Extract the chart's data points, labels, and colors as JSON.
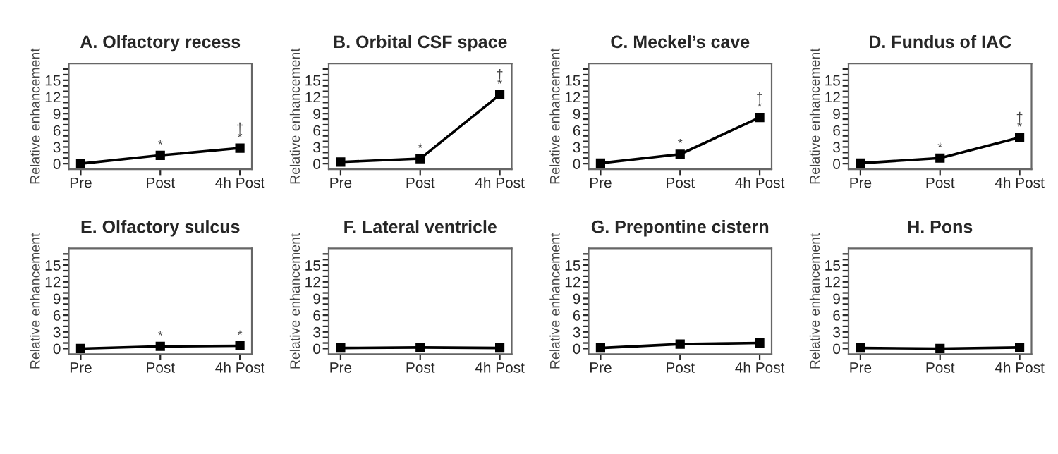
{
  "chart_data": [
    {
      "type": "line",
      "title": "A. Olfactory recess",
      "ylabel": "Relative enhancement",
      "categories": [
        "Pre",
        "Post",
        "4h Post"
      ],
      "series": [
        {
          "color": "#000000",
          "values": [
            0,
            1.5,
            2.8
          ]
        }
      ],
      "ylim": [
        -1,
        18
      ],
      "yticks": [
        0,
        {
          "value": 1,
          "label": null
        },
        {
          "value": 2,
          "label": null
        },
        3,
        {
          "value": 4,
          "label": null
        },
        {
          "value": 5,
          "label": null
        },
        6,
        {
          "value": 7,
          "label": null
        },
        {
          "value": 8,
          "label": null
        },
        9,
        {
          "value": 10,
          "label": null
        },
        {
          "value": 11,
          "label": null
        },
        12,
        {
          "value": 13,
          "label": null
        },
        {
          "value": 14,
          "label": null
        },
        15,
        {
          "value": 16,
          "label": null
        },
        {
          "value": 17,
          "label": null
        }
      ],
      "marker": "square",
      "line_style": "solid",
      "grid": false,
      "legend": false,
      "annotations": [
        {
          "text": "*",
          "x": "Post",
          "y": 1.5
        },
        {
          "text": "*",
          "x": "4h Post",
          "y": 2.8
        },
        {
          "text": "†",
          "x": "4h Post",
          "y": 2.8
        }
      ]
    },
    {
      "type": "line",
      "title": "B. Orbital CSF space",
      "ylabel": "Relative enhancement",
      "categories": [
        "Pre",
        "Post",
        "4h Post"
      ],
      "series": [
        {
          "color": "#000000",
          "values": [
            0.3,
            0.9,
            12.4
          ]
        }
      ],
      "ylim": [
        -1,
        18
      ],
      "yticks": [
        0,
        {
          "value": 1,
          "label": null
        },
        {
          "value": 2,
          "label": null
        },
        3,
        {
          "value": 4,
          "label": null
        },
        {
          "value": 5,
          "label": null
        },
        6,
        {
          "value": 7,
          "label": null
        },
        {
          "value": 8,
          "label": null
        },
        9,
        {
          "value": 10,
          "label": null
        },
        {
          "value": 11,
          "label": null
        },
        12,
        {
          "value": 13,
          "label": null
        },
        {
          "value": 14,
          "label": null
        },
        15,
        {
          "value": 16,
          "label": null
        },
        {
          "value": 17,
          "label": null
        }
      ],
      "marker": "square",
      "line_style": "solid",
      "grid": false,
      "legend": false,
      "annotations": [
        {
          "text": "*",
          "x": "Post",
          "y": 0.9
        },
        {
          "text": "*",
          "x": "4h Post",
          "y": 12.4
        },
        {
          "text": "†",
          "x": "4h Post",
          "y": 12.4
        }
      ]
    },
    {
      "type": "line",
      "title": "C. Meckel’s cave",
      "ylabel": "Relative enhancement",
      "categories": [
        "Pre",
        "Post",
        "4h Post"
      ],
      "series": [
        {
          "color": "#000000",
          "values": [
            0.1,
            1.7,
            8.3
          ]
        }
      ],
      "ylim": [
        -1,
        18
      ],
      "yticks": [
        0,
        {
          "value": 1,
          "label": null
        },
        {
          "value": 2,
          "label": null
        },
        3,
        {
          "value": 4,
          "label": null
        },
        {
          "value": 5,
          "label": null
        },
        6,
        {
          "value": 7,
          "label": null
        },
        {
          "value": 8,
          "label": null
        },
        9,
        {
          "value": 10,
          "label": null
        },
        {
          "value": 11,
          "label": null
        },
        12,
        {
          "value": 13,
          "label": null
        },
        {
          "value": 14,
          "label": null
        },
        15,
        {
          "value": 16,
          "label": null
        },
        {
          "value": 17,
          "label": null
        }
      ],
      "marker": "square",
      "line_style": "solid",
      "grid": false,
      "legend": false,
      "annotations": [
        {
          "text": "*",
          "x": "Post",
          "y": 1.7
        },
        {
          "text": "*",
          "x": "4h Post",
          "y": 8.3
        },
        {
          "text": "†",
          "x": "4h Post",
          "y": 8.3
        }
      ]
    },
    {
      "type": "line",
      "title": "D. Fundus of IAC",
      "ylabel": "Relative enhancement",
      "categories": [
        "Pre",
        "Post",
        "4h Post"
      ],
      "series": [
        {
          "color": "#000000",
          "values": [
            0.1,
            1.0,
            4.7
          ]
        }
      ],
      "ylim": [
        -1,
        18
      ],
      "yticks": [
        0,
        {
          "value": 1,
          "label": null
        },
        {
          "value": 2,
          "label": null
        },
        3,
        {
          "value": 4,
          "label": null
        },
        {
          "value": 5,
          "label": null
        },
        6,
        {
          "value": 7,
          "label": null
        },
        {
          "value": 8,
          "label": null
        },
        9,
        {
          "value": 10,
          "label": null
        },
        {
          "value": 11,
          "label": null
        },
        12,
        {
          "value": 13,
          "label": null
        },
        {
          "value": 14,
          "label": null
        },
        15,
        {
          "value": 16,
          "label": null
        },
        {
          "value": 17,
          "label": null
        }
      ],
      "marker": "square",
      "line_style": "solid",
      "grid": false,
      "legend": false,
      "annotations": [
        {
          "text": "*",
          "x": "Post",
          "y": 1.0
        },
        {
          "text": "*",
          "x": "4h Post",
          "y": 4.7
        },
        {
          "text": "†",
          "x": "4h Post",
          "y": 4.7
        }
      ]
    },
    {
      "type": "line",
      "title": "E. Olfactory sulcus",
      "ylabel": "Relative enhancement",
      "categories": [
        "Pre",
        "Post",
        "4h Post"
      ],
      "series": [
        {
          "color": "#000000",
          "values": [
            0,
            0.4,
            0.5
          ]
        }
      ],
      "ylim": [
        -1,
        18
      ],
      "yticks": [
        0,
        {
          "value": 1,
          "label": null
        },
        {
          "value": 2,
          "label": null
        },
        3,
        {
          "value": 4,
          "label": null
        },
        {
          "value": 5,
          "label": null
        },
        6,
        {
          "value": 7,
          "label": null
        },
        {
          "value": 8,
          "label": null
        },
        9,
        {
          "value": 10,
          "label": null
        },
        {
          "value": 11,
          "label": null
        },
        12,
        {
          "value": 13,
          "label": null
        },
        {
          "value": 14,
          "label": null
        },
        15,
        {
          "value": 16,
          "label": null
        },
        {
          "value": 17,
          "label": null
        }
      ],
      "marker": "square",
      "line_style": "solid",
      "grid": false,
      "legend": false,
      "annotations": [
        {
          "text": "*",
          "x": "Post",
          "y": 0.4
        },
        {
          "text": "*",
          "x": "4h Post",
          "y": 0.5
        }
      ]
    },
    {
      "type": "line",
      "title": "F. Lateral ventricle",
      "ylabel": "Relative enhancement",
      "categories": [
        "Pre",
        "Post",
        "4h Post"
      ],
      "series": [
        {
          "color": "#000000",
          "values": [
            0.1,
            0.2,
            0.1
          ]
        }
      ],
      "ylim": [
        -1,
        18
      ],
      "yticks": [
        0,
        {
          "value": 1,
          "label": null
        },
        {
          "value": 2,
          "label": null
        },
        3,
        {
          "value": 4,
          "label": null
        },
        {
          "value": 5,
          "label": null
        },
        6,
        {
          "value": 7,
          "label": null
        },
        {
          "value": 8,
          "label": null
        },
        9,
        {
          "value": 10,
          "label": null
        },
        {
          "value": 11,
          "label": null
        },
        12,
        {
          "value": 13,
          "label": null
        },
        {
          "value": 14,
          "label": null
        },
        15,
        {
          "value": 16,
          "label": null
        },
        {
          "value": 17,
          "label": null
        }
      ],
      "marker": "square",
      "line_style": "solid",
      "grid": false,
      "legend": false
    },
    {
      "type": "line",
      "title": "G. Prepontine cistern",
      "ylabel": "Relative enhancement",
      "categories": [
        "Pre",
        "Post",
        "4h Post"
      ],
      "series": [
        {
          "color": "#000000",
          "values": [
            0.1,
            0.8,
            1.0
          ]
        }
      ],
      "ylim": [
        -1,
        18
      ],
      "yticks": [
        0,
        {
          "value": 1,
          "label": null
        },
        {
          "value": 2,
          "label": null
        },
        3,
        {
          "value": 4,
          "label": null
        },
        {
          "value": 5,
          "label": null
        },
        6,
        {
          "value": 7,
          "label": null
        },
        {
          "value": 8,
          "label": null
        },
        9,
        {
          "value": 10,
          "label": null
        },
        {
          "value": 11,
          "label": null
        },
        12,
        {
          "value": 13,
          "label": null
        },
        {
          "value": 14,
          "label": null
        },
        15,
        {
          "value": 16,
          "label": null
        },
        {
          "value": 17,
          "label": null
        }
      ],
      "marker": "square",
      "line_style": "solid",
      "grid": false,
      "legend": false
    },
    {
      "type": "line",
      "title": "H. Pons",
      "ylabel": "Relative enhancement",
      "categories": [
        "Pre",
        "Post",
        "4h Post"
      ],
      "series": [
        {
          "color": "#000000",
          "values": [
            0.1,
            0,
            0.2
          ]
        }
      ],
      "ylim": [
        -1,
        18
      ],
      "yticks": [
        0,
        {
          "value": 1,
          "label": null
        },
        {
          "value": 2,
          "label": null
        },
        3,
        {
          "value": 4,
          "label": null
        },
        {
          "value": 5,
          "label": null
        },
        6,
        {
          "value": 7,
          "label": null
        },
        {
          "value": 8,
          "label": null
        },
        9,
        {
          "value": 10,
          "label": null
        },
        {
          "value": 11,
          "label": null
        },
        12,
        {
          "value": 13,
          "label": null
        },
        {
          "value": 14,
          "label": null
        },
        15,
        {
          "value": 16,
          "label": null
        },
        {
          "value": 17,
          "label": null
        }
      ],
      "marker": "square",
      "line_style": "solid",
      "grid": false,
      "legend": false
    }
  ]
}
